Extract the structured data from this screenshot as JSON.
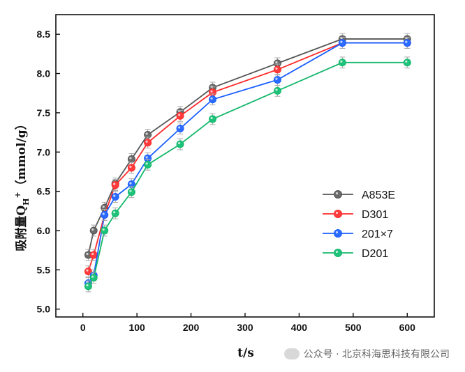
{
  "chart_data": {
    "type": "line",
    "xlabel": "t/s",
    "ylabel": "吸附量Q",
    "ylabel_sub": "H",
    "ylabel_sup": "+",
    "ylabel_unit": "（mmol/g）",
    "xlim": [
      -50,
      650
    ],
    "ylim": [
      4.9,
      8.75
    ],
    "xticks": [
      0,
      100,
      200,
      300,
      400,
      500,
      600
    ],
    "yticks": [
      5.0,
      5.5,
      6.0,
      6.5,
      7.0,
      7.5,
      8.0,
      8.5
    ],
    "x": [
      10,
      20,
      40,
      60,
      90,
      120,
      180,
      240,
      360,
      480,
      600
    ],
    "series": [
      {
        "name": "A853E",
        "color": "#555555",
        "fill": "#6b6b6b",
        "values": [
          5.69,
          6.0,
          6.29,
          6.6,
          6.91,
          7.22,
          7.51,
          7.82,
          8.13,
          8.44,
          8.44
        ]
      },
      {
        "name": "D301",
        "color": "#ff2a2a",
        "fill": "#ff3b3b",
        "values": [
          5.48,
          5.69,
          6.2,
          6.58,
          6.8,
          7.12,
          7.46,
          7.76,
          8.05,
          8.39,
          8.39
        ]
      },
      {
        "name": "201×7",
        "color": "#1a5fff",
        "fill": "#2b6bff",
        "values": [
          5.33,
          5.43,
          6.2,
          6.43,
          6.59,
          6.92,
          7.3,
          7.67,
          7.92,
          8.39,
          8.39
        ]
      },
      {
        "name": "D201",
        "color": "#14b86b",
        "fill": "#1ec27a",
        "values": [
          5.29,
          5.4,
          6.0,
          6.22,
          6.49,
          6.84,
          7.1,
          7.42,
          7.78,
          8.14,
          8.14
        ]
      }
    ],
    "error": 0.07,
    "legend_position": "right"
  },
  "watermark": {
    "text": "公众号 · 北京科海思科技有限公司"
  }
}
